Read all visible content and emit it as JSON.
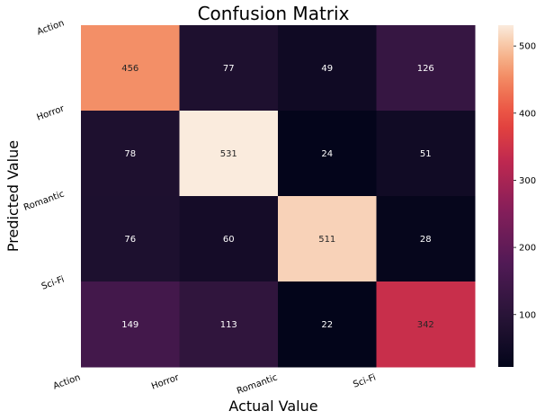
{
  "chart_data": {
    "type": "heatmap",
    "title": "Confusion Matrix",
    "xlabel": "Actual Value",
    "ylabel": "Predicted Value",
    "x_categories": [
      "Action",
      "Horror",
      "Romantic",
      "Sci-Fi"
    ],
    "y_categories": [
      "Action",
      "Horror",
      "Romantic",
      "Sci-Fi"
    ],
    "values": [
      [
        456,
        77,
        49,
        126
      ],
      [
        78,
        531,
        24,
        51
      ],
      [
        76,
        60,
        511,
        28
      ],
      [
        149,
        113,
        22,
        342
      ]
    ],
    "colorbar": {
      "min": 22,
      "max": 531,
      "ticks": [
        100,
        200,
        300,
        400,
        500
      ]
    },
    "colormap": "rocket",
    "grid": false,
    "legend": "colorbar-right"
  }
}
